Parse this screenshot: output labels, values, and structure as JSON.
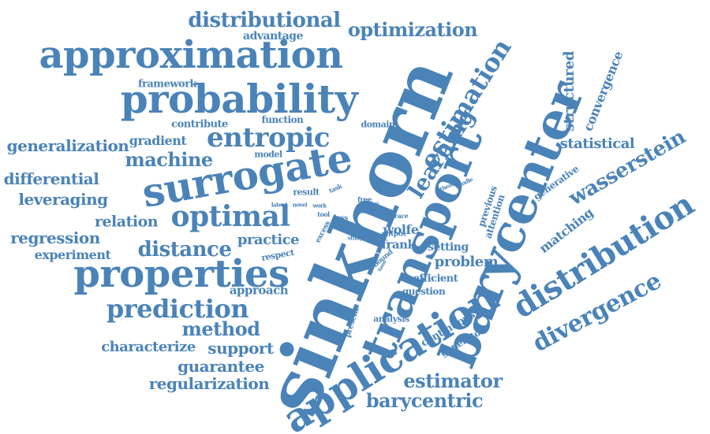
{
  "colors": {
    "word": "#4a83b8",
    "background": "#ffffff"
  },
  "words": [
    {
      "text": "sinkhorn",
      "weight": 1.0
    },
    {
      "text": "barycenter",
      "weight": 0.86
    },
    {
      "text": "transport",
      "weight": 0.8
    },
    {
      "text": "application",
      "weight": 0.76
    },
    {
      "text": "approximation",
      "weight": 0.74
    },
    {
      "text": "surrogate",
      "weight": 0.72
    },
    {
      "text": "probability",
      "weight": 0.72
    },
    {
      "text": "properties",
      "weight": 0.7
    },
    {
      "text": "distribution",
      "weight": 0.62
    },
    {
      "text": "optimal",
      "weight": 0.58
    },
    {
      "text": "estimation",
      "weight": 0.55
    },
    {
      "text": "entropic",
      "weight": 0.54
    },
    {
      "text": "learning",
      "weight": 0.5
    },
    {
      "text": "prediction",
      "weight": 0.5
    },
    {
      "text": "divergence",
      "weight": 0.48
    },
    {
      "text": "wasserstein",
      "weight": 0.44
    },
    {
      "text": "distributional",
      "weight": 0.42
    },
    {
      "text": "optimization",
      "weight": 0.4
    },
    {
      "text": "distance",
      "weight": 0.4
    },
    {
      "text": "machine",
      "weight": 0.38
    },
    {
      "text": "method",
      "weight": 0.38
    },
    {
      "text": "estimator",
      "weight": 0.36
    },
    {
      "text": "barycentric",
      "weight": 0.34
    },
    {
      "text": "structured",
      "weight": 0.3
    },
    {
      "text": "statistical",
      "weight": 0.28
    },
    {
      "text": "convergence",
      "weight": 0.26
    },
    {
      "text": "matching",
      "weight": 0.27
    },
    {
      "text": "generalization",
      "weight": 0.3
    },
    {
      "text": "differential",
      "weight": 0.3
    },
    {
      "text": "leveraging",
      "weight": 0.3
    },
    {
      "text": "regression",
      "weight": 0.3
    },
    {
      "text": "relation",
      "weight": 0.29
    },
    {
      "text": "guarantee",
      "weight": 0.3
    },
    {
      "text": "regularization",
      "weight": 0.3
    },
    {
      "text": "support",
      "weight": 0.3
    },
    {
      "text": "characterize",
      "weight": 0.27
    },
    {
      "text": "practice",
      "weight": 0.27
    },
    {
      "text": "problem",
      "weight": 0.26
    },
    {
      "text": "gradient",
      "weight": 0.25
    },
    {
      "text": "approach",
      "weight": 0.22
    },
    {
      "text": "experiment",
      "weight": 0.24
    },
    {
      "text": "framework",
      "weight": 0.2
    },
    {
      "text": "advantage",
      "weight": 0.2
    },
    {
      "text": "contribute",
      "weight": 0.19
    },
    {
      "text": "function",
      "weight": 0.18
    },
    {
      "text": "domain",
      "weight": 0.17
    },
    {
      "text": "model",
      "weight": 0.16
    },
    {
      "text": "wolfe",
      "weight": 0.22
    },
    {
      "text": "frank",
      "weight": 0.2
    },
    {
      "text": "continuous",
      "weight": 0.2
    },
    {
      "text": "generator",
      "weight": 0.2
    },
    {
      "text": "setting",
      "weight": 0.2
    },
    {
      "text": "efficient",
      "weight": 0.18
    },
    {
      "text": "question",
      "weight": 0.17
    },
    {
      "text": "analysis",
      "weight": 0.16
    },
    {
      "text": "generative",
      "weight": 0.17
    },
    {
      "text": "previous",
      "weight": 0.16
    },
    {
      "text": "attention",
      "weight": 0.16
    },
    {
      "text": "rank",
      "weight": 0.17
    },
    {
      "text": "loss",
      "weight": 0.15
    },
    {
      "text": "result",
      "weight": 0.16
    },
    {
      "text": "respect",
      "weight": 0.15
    },
    {
      "text": "present",
      "weight": 0.15
    },
    {
      "text": "excess",
      "weight": 0.14
    },
    {
      "text": "bound",
      "weight": 0.14
    },
    {
      "text": "output",
      "weight": 0.14
    },
    {
      "text": "trace",
      "weight": 0.13
    },
    {
      "text": "free",
      "weight": 0.14
    },
    {
      "text": "tool",
      "weight": 0.13
    },
    {
      "text": "task",
      "weight": 0.12
    },
    {
      "text": "latent",
      "weight": 0.12
    },
    {
      "text": "novel",
      "weight": 0.12
    },
    {
      "text": "work",
      "weight": 0.12
    },
    {
      "text": "study",
      "weight": 0.11
    },
    {
      "text": "rate",
      "weight": 0.11
    },
    {
      "text": "theory",
      "weight": 0.1
    },
    {
      "text": "handle",
      "weight": 0.1
    },
    {
      "text": "hand",
      "weight": 0.09
    },
    {
      "text": "risk",
      "weight": 0.09
    }
  ]
}
